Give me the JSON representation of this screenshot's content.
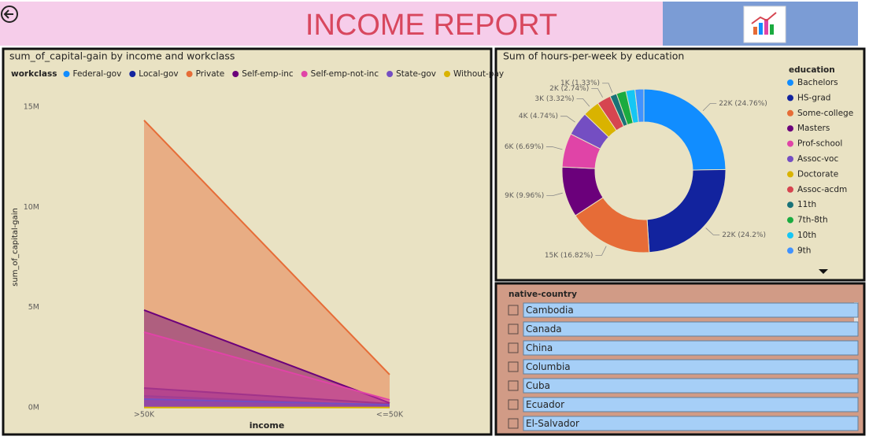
{
  "header": {
    "title": "INCOME REPORT"
  },
  "chart_data": [
    {
      "type": "area",
      "title": "sum_of_capital-gain by income and workclass",
      "legend_title": "workclass",
      "categories": [
        ">50K",
        "<=50K"
      ],
      "x_label": "income",
      "y_label": "sum_of_capital-gain",
      "ylim": [
        0,
        15000000
      ],
      "yticks": [
        {
          "value": 0,
          "label": "0M"
        },
        {
          "value": 5000000,
          "label": "5M"
        },
        {
          "value": 10000000,
          "label": "10M"
        },
        {
          "value": 15000000,
          "label": "15M"
        }
      ],
      "grid": false,
      "series": [
        {
          "name": "Federal-gov",
          "color": "#118DFF",
          "values": [
            590000,
            100000
          ]
        },
        {
          "name": "Local-gov",
          "color": "#12239E",
          "values": [
            980000,
            200000
          ]
        },
        {
          "name": "Private",
          "color": "#E66C37",
          "values": [
            14340000,
            1650000
          ]
        },
        {
          "name": "Self-emp-inc",
          "color": "#6B007B",
          "values": [
            4870000,
            240000
          ]
        },
        {
          "name": "Self-emp-not-inc",
          "color": "#E044A7",
          "values": [
            3770000,
            390000
          ]
        },
        {
          "name": "State-gov",
          "color": "#744EC2",
          "values": [
            430000,
            150000
          ]
        },
        {
          "name": "Without-pay",
          "color": "#D9B300",
          "values": [
            10000,
            10000
          ]
        }
      ]
    },
    {
      "type": "donut",
      "title": "Sum of hours-per-week by education",
      "legend_title": "education",
      "categories": [
        "Bachelors",
        "HS-grad",
        "Some-college",
        "Masters",
        "Prof-school",
        "Assoc-voc",
        "Doctorate",
        "Assoc-acdm",
        "11th",
        "7th-8th",
        "10th",
        "9th"
      ],
      "values": [
        22000,
        21502,
        14945,
        8850,
        5944,
        4212,
        2950,
        2435,
        1182,
        1688,
        1600,
        1546
      ],
      "value_labels": [
        "22K (24.76%)",
        "22K (24.2%)",
        "15K (16.82%)",
        "9K (9.96%)",
        "6K (6.69%)",
        "4K (4.74%)",
        "3K (3.32%)",
        "2K (2.74%)",
        "1K (1.33%)",
        null,
        null,
        null
      ],
      "colors": [
        "#118DFF",
        "#12239E",
        "#E66C37",
        "#6B007B",
        "#E044A7",
        "#744EC2",
        "#D9B300",
        "#D64550",
        "#197278",
        "#1AAB40",
        "#15C6F4",
        "#4092FF"
      ]
    }
  ],
  "slicer": {
    "title": "native-country",
    "items": [
      "Cambodia",
      "Canada",
      "China",
      "Columbia",
      "Cuba",
      "Ecuador",
      "El-Salvador"
    ]
  }
}
